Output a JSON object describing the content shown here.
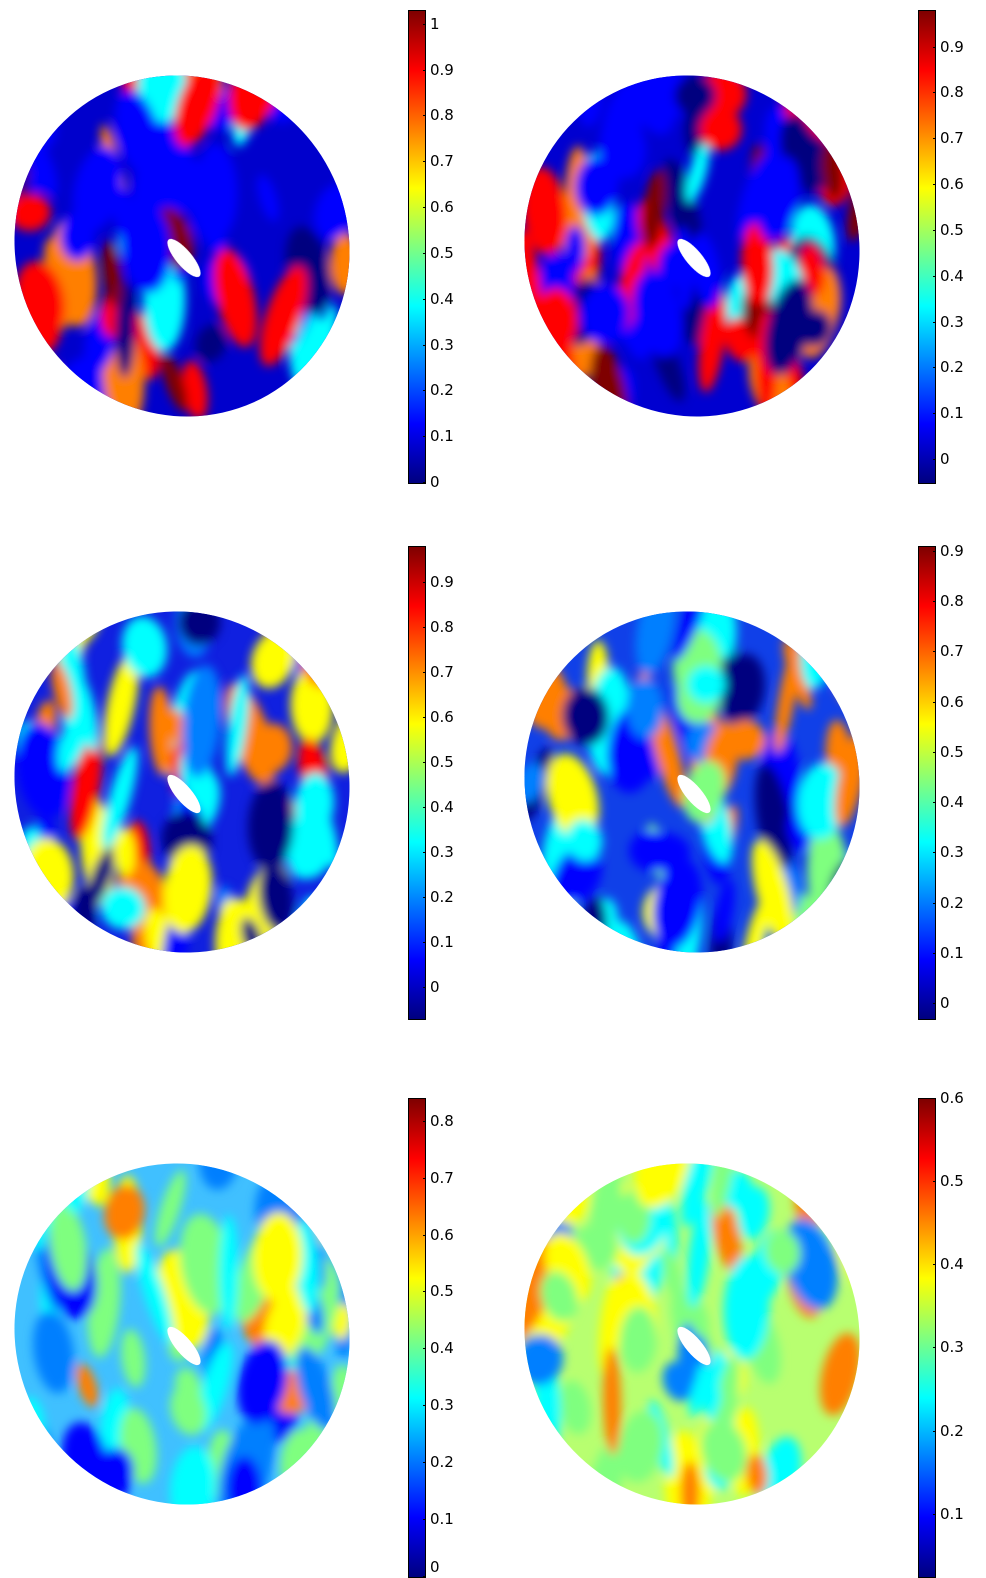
{
  "colors": {
    "jet": [
      "#00007f",
      "#0000ff",
      "#007fff",
      "#00ffff",
      "#7fff7f",
      "#ffff00",
      "#ff7f00",
      "#ff0000",
      "#7f0000"
    ]
  },
  "chart_data": [
    {
      "type": "heatmap",
      "colorbar": {
        "ticks": [
          "0",
          "0.1",
          "0.2",
          "0.3",
          "0.4",
          "0.5",
          "0.6",
          "0.7",
          "0.8",
          "0.9",
          "1"
        ],
        "min": 0,
        "max": 1.03
      }
    },
    {
      "type": "heatmap",
      "colorbar": {
        "ticks": [
          "0",
          "0.1",
          "0.2",
          "0.3",
          "0.4",
          "0.5",
          "0.6",
          "0.7",
          "0.8",
          "0.9"
        ],
        "min": -0.05,
        "max": 0.98
      }
    },
    {
      "type": "heatmap",
      "colorbar": {
        "ticks": [
          "0",
          "0.1",
          "0.2",
          "0.3",
          "0.4",
          "0.5",
          "0.6",
          "0.7",
          "0.8",
          "0.9"
        ],
        "min": -0.07,
        "max": 0.98
      }
    },
    {
      "type": "heatmap",
      "colorbar": {
        "ticks": [
          "0",
          "0.1",
          "0.2",
          "0.3",
          "0.4",
          "0.5",
          "0.6",
          "0.7",
          "0.8",
          "0.9"
        ],
        "min": -0.03,
        "max": 0.91
      }
    },
    {
      "type": "heatmap",
      "colorbar": {
        "ticks": [
          "0",
          "0.1",
          "0.2",
          "0.3",
          "0.4",
          "0.5",
          "0.6",
          "0.7",
          "0.8"
        ],
        "min": 0,
        "max": 0.84
      }
    },
    {
      "type": "heatmap",
      "colorbar": {
        "ticks": [
          "0.1",
          "0.2",
          "0.3",
          "0.4",
          "0.5",
          "0.6"
        ],
        "min": 0.025,
        "max": 0.6
      }
    }
  ]
}
